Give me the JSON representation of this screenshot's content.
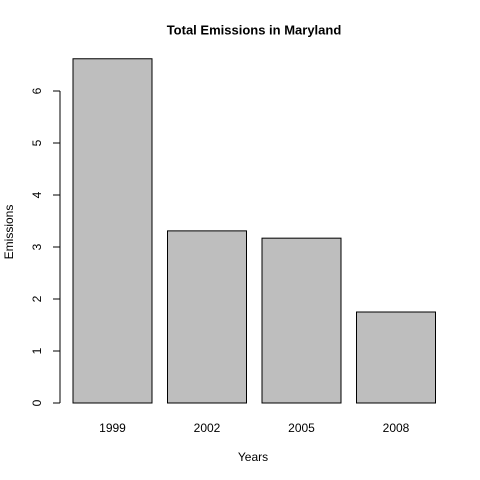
{
  "chart_data": {
    "type": "bar",
    "title": "Total Emissions in Maryland",
    "x_label": "Years",
    "y_label": "Emissions",
    "categories": [
      "1999",
      "2002",
      "2005",
      "2008"
    ],
    "values": [
      6.62,
      3.31,
      3.17,
      1.75
    ],
    "color": "#bebebe",
    "ylim": [
      0,
      7
    ],
    "yticks": [
      0,
      1,
      2,
      3,
      4,
      5,
      6
    ],
    "grid": false
  }
}
